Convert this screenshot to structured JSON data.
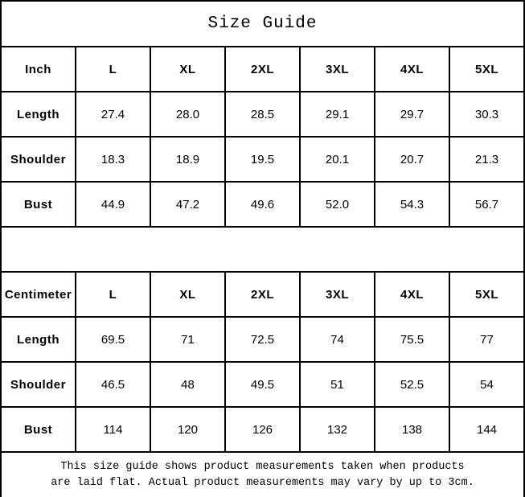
{
  "title": "Size Guide",
  "colors": {
    "border": "#000000",
    "background": "#ffffff",
    "text": "#000000"
  },
  "tables": [
    {
      "unit": "Inch",
      "sizes": [
        "L",
        "XL",
        "2XL",
        "3XL",
        "4XL",
        "5XL"
      ],
      "rows": [
        {
          "label": "Length",
          "values": [
            "27.4",
            "28.0",
            "28.5",
            "29.1",
            "29.7",
            "30.3"
          ]
        },
        {
          "label": "Shoulder",
          "values": [
            "18.3",
            "18.9",
            "19.5",
            "20.1",
            "20.7",
            "21.3"
          ]
        },
        {
          "label": "Bust",
          "values": [
            "44.9",
            "47.2",
            "49.6",
            "52.0",
            "54.3",
            "56.7"
          ]
        }
      ]
    },
    {
      "unit": "Centimeter",
      "sizes": [
        "L",
        "XL",
        "2XL",
        "3XL",
        "4XL",
        "5XL"
      ],
      "rows": [
        {
          "label": "Length",
          "values": [
            "69.5",
            "71",
            "72.5",
            "74",
            "75.5",
            "77"
          ]
        },
        {
          "label": "Shoulder",
          "values": [
            "46.5",
            "48",
            "49.5",
            "51",
            "52.5",
            "54"
          ]
        },
        {
          "label": "Bust",
          "values": [
            "114",
            "120",
            "126",
            "132",
            "138",
            "144"
          ]
        }
      ]
    }
  ],
  "footer": {
    "line1": "This size guide shows product measurements taken when products",
    "line2": "are laid flat. Actual product measurements may vary by up to 3cm."
  }
}
